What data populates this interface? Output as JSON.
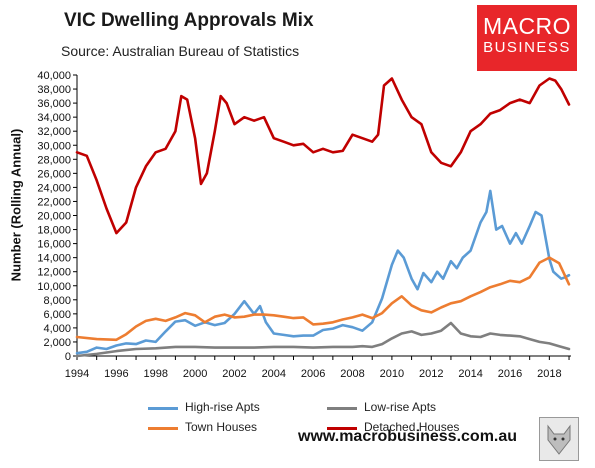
{
  "header": {
    "title": "VIC Dwelling Approvals Mix",
    "subtitle": "Source: Australian Bureau of Statistics"
  },
  "logo": {
    "line1": "MACRO",
    "line2": "BUSINESS"
  },
  "footer": {
    "url": "www.macrobusiness.com.au"
  },
  "colors": {
    "high_rise": "#5b9bd5",
    "low_rise": "#7f7f7f",
    "town_houses": "#ed7d31",
    "detached": "#c00000",
    "logo_red": "#e8262a"
  },
  "chart_data": {
    "type": "line",
    "title": "VIC Dwelling Approvals Mix",
    "ylabel": "Number (Rolling Annual)",
    "xlabel": "",
    "xlim": [
      1994,
      2019.1
    ],
    "ylim": [
      0,
      40000
    ],
    "y_ticks": [
      "0",
      "2,000",
      "4,000",
      "6,000",
      "8,000",
      "10,000",
      "12,000",
      "14,000",
      "16,000",
      "18,000",
      "20,000",
      "22,000",
      "24,000",
      "26,000",
      "28,000",
      "30,000",
      "32,000",
      "34,000",
      "36,000",
      "38,000",
      "40,000"
    ],
    "x_ticks": [
      "1994",
      "1996",
      "1998",
      "2000",
      "2002",
      "2004",
      "2006",
      "2008",
      "2010",
      "2012",
      "2014",
      "2016",
      "2018"
    ],
    "grid": false,
    "legend_position": "bottom",
    "series": [
      {
        "name": "High-rise Apts",
        "key": "high_rise",
        "x": [
          1994,
          1994.5,
          1995,
          1995.5,
          1996,
          1996.5,
          1997,
          1997.5,
          1998,
          1998.5,
          1999,
          1999.5,
          2000,
          2000.5,
          2001,
          2001.5,
          2002,
          2002.5,
          2003,
          2003.3,
          2003.6,
          2004,
          2004.5,
          2005,
          2005.5,
          2006,
          2006.5,
          2007,
          2007.5,
          2008,
          2008.5,
          2009,
          2009.5,
          2010,
          2010.3,
          2010.6,
          2011,
          2011.3,
          2011.6,
          2012,
          2012.3,
          2012.6,
          2013,
          2013.3,
          2013.6,
          2014,
          2014.5,
          2014.8,
          2015,
          2015.3,
          2015.6,
          2016,
          2016.3,
          2016.6,
          2017,
          2017.3,
          2017.6,
          2018,
          2018.2,
          2018.4,
          2018.6,
          2018.8,
          2019
        ],
        "values": [
          400,
          600,
          1200,
          1000,
          1500,
          1800,
          1700,
          2200,
          2000,
          3500,
          4900,
          5100,
          4300,
          4800,
          4400,
          4700,
          6000,
          7800,
          6000,
          7100,
          4800,
          3200,
          3000,
          2800,
          2900,
          2900,
          3700,
          3900,
          4400,
          4100,
          3600,
          4800,
          8200,
          13000,
          15000,
          14000,
          11000,
          9500,
          11800,
          10500,
          12000,
          11000,
          13500,
          12500,
          14000,
          15000,
          19000,
          20500,
          23500,
          18000,
          18500,
          16000,
          17500,
          16000,
          18500,
          20500,
          20000,
          13800,
          12000,
          11500,
          11000,
          11200,
          11500
        ]
      },
      {
        "name": "Low-rise Apts",
        "key": "low_rise",
        "x": [
          1994,
          1995,
          1996,
          1997,
          1998,
          1999,
          2000,
          2001,
          2002,
          2003,
          2004,
          2005,
          2006,
          2007,
          2008,
          2008.5,
          2009,
          2009.5,
          2010,
          2010.5,
          2011,
          2011.5,
          2012,
          2012.5,
          2013,
          2013.5,
          2014,
          2014.5,
          2015,
          2015.5,
          2016,
          2016.5,
          2017,
          2017.5,
          2018,
          2018.5,
          2019
        ],
        "values": [
          0,
          300,
          700,
          1000,
          1100,
          1300,
          1300,
          1200,
          1200,
          1200,
          1300,
          1300,
          1200,
          1300,
          1300,
          1400,
          1300,
          1700,
          2500,
          3200,
          3500,
          3000,
          3200,
          3600,
          4700,
          3200,
          2800,
          2700,
          3200,
          3000,
          2900,
          2800,
          2400,
          2000,
          1800,
          1400,
          1000
        ]
      },
      {
        "name": "Town Houses",
        "key": "town_houses",
        "x": [
          1994,
          1995,
          1996,
          1996.5,
          1997,
          1997.5,
          1998,
          1998.5,
          1999,
          1999.5,
          2000,
          2000.5,
          2001,
          2001.5,
          2002,
          2002.5,
          2003,
          2003.5,
          2004,
          2004.5,
          2005,
          2005.5,
          2006,
          2006.5,
          2007,
          2007.5,
          2008,
          2008.5,
          2009,
          2009.5,
          2010,
          2010.5,
          2011,
          2011.5,
          2012,
          2012.5,
          2013,
          2013.5,
          2014,
          2014.5,
          2015,
          2015.5,
          2016,
          2016.5,
          2017,
          2017.5,
          2018,
          2018.5,
          2019
        ],
        "values": [
          2700,
          2400,
          2300,
          3100,
          4200,
          5000,
          5300,
          5000,
          5500,
          6100,
          5800,
          4800,
          5600,
          5900,
          5500,
          5600,
          5900,
          5900,
          5800,
          5600,
          5400,
          5500,
          4500,
          4600,
          4800,
          5200,
          5500,
          5900,
          5400,
          6100,
          7500,
          8500,
          7200,
          6500,
          6200,
          6900,
          7500,
          7800,
          8500,
          9100,
          9800,
          10200,
          10700,
          10500,
          11200,
          13300,
          14000,
          13200,
          10200
        ]
      },
      {
        "name": "Detached Houses",
        "key": "detached",
        "x": [
          1994,
          1994.5,
          1995,
          1995.5,
          1996,
          1996.5,
          1997,
          1997.5,
          1998,
          1998.5,
          1999,
          1999.3,
          1999.6,
          2000,
          2000.3,
          2000.6,
          2001,
          2001.3,
          2001.6,
          2002,
          2002.5,
          2003,
          2003.5,
          2004,
          2004.5,
          2005,
          2005.5,
          2006,
          2006.5,
          2007,
          2007.5,
          2008,
          2008.5,
          2009,
          2009.3,
          2009.6,
          2010,
          2010.5,
          2011,
          2011.5,
          2012,
          2012.5,
          2013,
          2013.5,
          2014,
          2014.5,
          2015,
          2015.5,
          2016,
          2016.5,
          2017,
          2017.5,
          2018,
          2018.3,
          2018.6,
          2019
        ],
        "values": [
          29000,
          28500,
          25000,
          21000,
          17500,
          19000,
          24000,
          27000,
          29000,
          29500,
          32000,
          37000,
          36500,
          31000,
          24500,
          26000,
          32000,
          37000,
          36000,
          33000,
          34000,
          33500,
          34000,
          31000,
          30500,
          30000,
          30200,
          29000,
          29500,
          29000,
          29200,
          31500,
          31000,
          30500,
          31500,
          38500,
          39500,
          36500,
          34000,
          33000,
          29000,
          27500,
          27000,
          29000,
          32000,
          33000,
          34500,
          35000,
          36000,
          36500,
          36000,
          38500,
          39500,
          39200,
          38000,
          35800
        ]
      }
    ]
  }
}
